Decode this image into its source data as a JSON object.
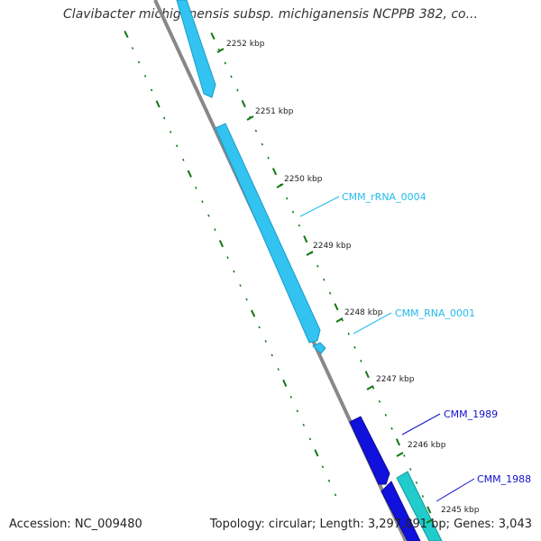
{
  "title": "Clavibacter michiganensis subsp. michiganensis NCPPB 382, co...",
  "footer": {
    "accession": "Accession: NC_009480",
    "summary": "Topology: circular; Length: 3,297,891 bp; Genes: 3,043"
  },
  "ticks": [
    {
      "label": "2252 kbp"
    },
    {
      "label": "2251 kbp"
    },
    {
      "label": "2250 kbp"
    },
    {
      "label": "2249 kbp"
    },
    {
      "label": "2248 kbp"
    },
    {
      "label": "2247 kbp"
    },
    {
      "label": "2246 kbp"
    },
    {
      "label": "2245 kbp"
    }
  ],
  "features": [
    {
      "label": "CMM_rRNA_0004",
      "color": "#22bbee"
    },
    {
      "label": "CMM_RNA_0001",
      "color": "#22bbee"
    },
    {
      "label": "CMM_1989",
      "color": "#1111cc"
    },
    {
      "label": "CMM_1988",
      "color": "#1111cc"
    }
  ],
  "colors": {
    "backbone": "#888888",
    "tick": "#117711",
    "rna": "#33c3f0",
    "gene_dark": "#1111dd",
    "gene_teal": "#22cccc"
  }
}
